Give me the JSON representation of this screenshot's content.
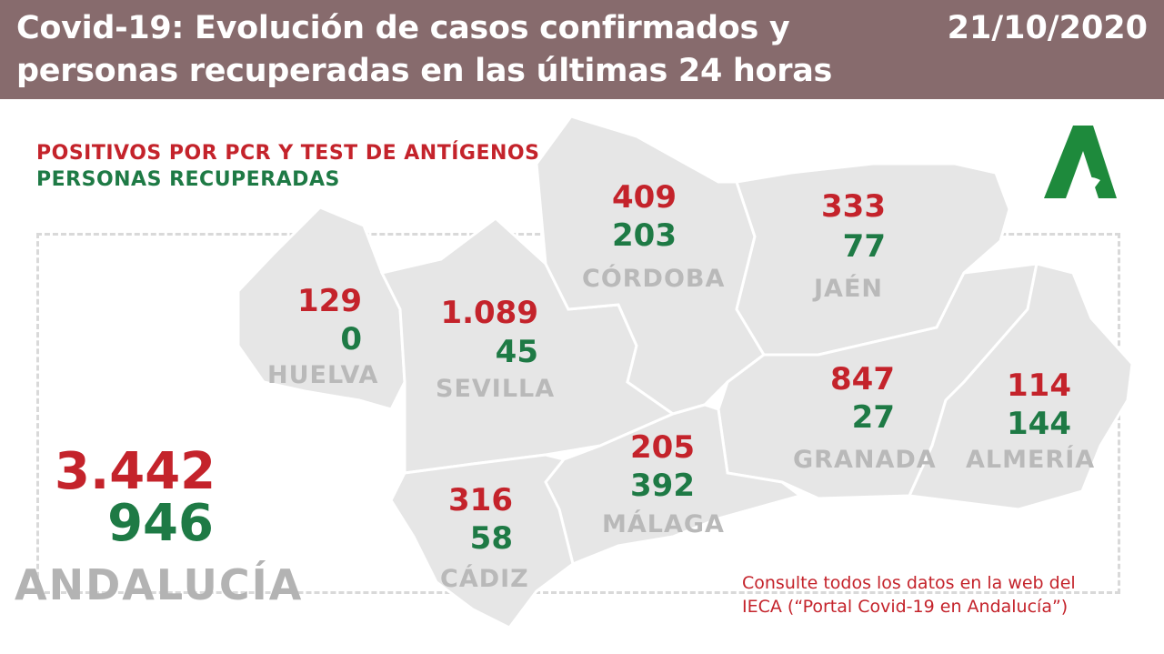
{
  "header": {
    "title": "Covid-19: Evolución de casos confirmados y personas recuperadas en las últimas 24 horas",
    "date": "21/10/2020"
  },
  "legend": {
    "positives": "POSITIVOS POR PCR Y TEST DE ANTÍGENOS",
    "recovered": "PERSONAS RECUPERADAS"
  },
  "provinces": {
    "cordoba": {
      "name": "CÓRDOBA",
      "positives": "409",
      "recovered": "203"
    },
    "jaen": {
      "name": "JAÉN",
      "positives": "333",
      "recovered": "77"
    },
    "huelva": {
      "name": "HUELVA",
      "positives": "129",
      "recovered": "0"
    },
    "sevilla": {
      "name": "SEVILLA",
      "positives": "1.089",
      "recovered": "45"
    },
    "granada": {
      "name": "GRANADA",
      "positives": "847",
      "recovered": "27"
    },
    "almeria": {
      "name": "ALMERÍA",
      "positives": "114",
      "recovered": "144"
    },
    "malaga": {
      "name": "MÁLAGA",
      "positives": "205",
      "recovered": "392"
    },
    "cadiz": {
      "name": "CÁDIZ",
      "positives": "316",
      "recovered": "58"
    }
  },
  "total": {
    "name": "ANDALUCÍA",
    "positives": "3.442",
    "recovered": "946"
  },
  "note": {
    "line1": "Consulte todos los datos en la web del",
    "line2": "IECA (“Portal Covid-19 en Andalucía”)"
  },
  "colors": {
    "header_bg": "#876b6d",
    "positives": "#c4232b",
    "recovered": "#1e7a45",
    "map": "#e6e6e6",
    "logo": "#1e8a3c"
  },
  "icons": {
    "logo": "junta-andalucia-logo"
  }
}
